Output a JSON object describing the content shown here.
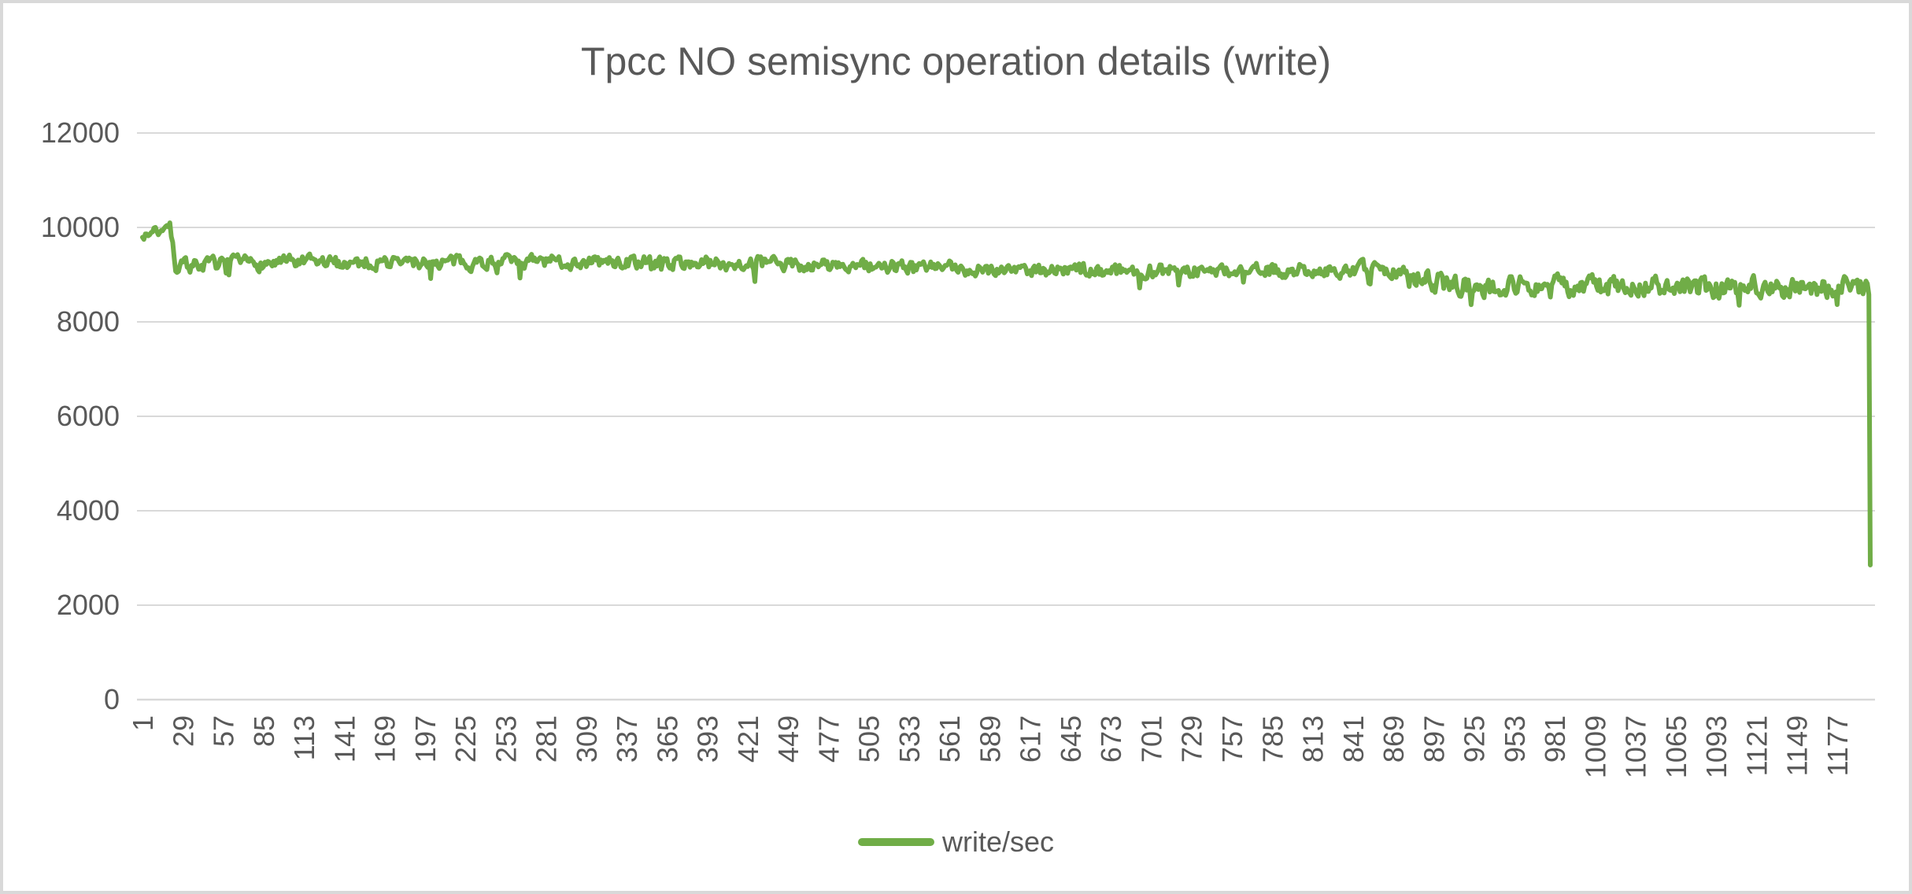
{
  "window": {
    "background": "#ffffff",
    "border_color": "#d9d9d9"
  },
  "chart_data": {
    "type": "line",
    "title": "Tpcc NO semisync operation details (write)",
    "xlabel": "",
    "ylabel": "",
    "ylim": [
      0,
      12000
    ],
    "y_ticks": [
      0,
      2000,
      4000,
      6000,
      8000,
      10000,
      12000
    ],
    "x_labels": [
      1,
      29,
      57,
      85,
      113,
      141,
      169,
      197,
      225,
      253,
      281,
      309,
      337,
      365,
      393,
      421,
      449,
      477,
      505,
      533,
      561,
      589,
      617,
      645,
      673,
      701,
      729,
      757,
      785,
      813,
      841,
      869,
      897,
      925,
      953,
      981,
      1009,
      1037,
      1065,
      1093,
      1121,
      1149,
      1177
    ],
    "x_label_step": 28,
    "x_label_rotation": -90,
    "n_points": 1200,
    "grid": "horizontal",
    "grid_color": "#D9D9D9",
    "text_color": "#595959",
    "legend_position": "bottom",
    "series": [
      {
        "name": "write/sec",
        "color": "#70AD47",
        "stroke_width": 6
      }
    ],
    "trend_anchors": [
      [
        1,
        9870
      ],
      [
        5,
        9800
      ],
      [
        9,
        10000
      ],
      [
        13,
        9880
      ],
      [
        17,
        10070
      ],
      [
        20,
        10040
      ],
      [
        22,
        9600
      ],
      [
        24,
        9180
      ],
      [
        60,
        9230
      ],
      [
        150,
        9260
      ],
      [
        300,
        9270
      ],
      [
        420,
        9240
      ],
      [
        520,
        9160
      ],
      [
        640,
        9100
      ],
      [
        720,
        9080
      ],
      [
        800,
        9090
      ],
      [
        860,
        9120
      ],
      [
        875,
        9060
      ],
      [
        900,
        8830
      ],
      [
        925,
        8740
      ],
      [
        960,
        8790
      ],
      [
        1000,
        8740
      ],
      [
        1040,
        8770
      ],
      [
        1080,
        8700
      ],
      [
        1120,
        8760
      ],
      [
        1150,
        8720
      ],
      [
        1180,
        8760
      ],
      [
        1198,
        8740
      ],
      [
        1199,
        8600
      ],
      [
        1200,
        2850
      ]
    ],
    "noise_segments": [
      [
        1,
        21,
        80
      ],
      [
        22,
        879,
        125
      ],
      [
        880,
        1198,
        185
      ],
      [
        1199,
        1200,
        60
      ]
    ],
    "dip_chance": 0.015,
    "final_value": 2850,
    "seed": 7
  }
}
